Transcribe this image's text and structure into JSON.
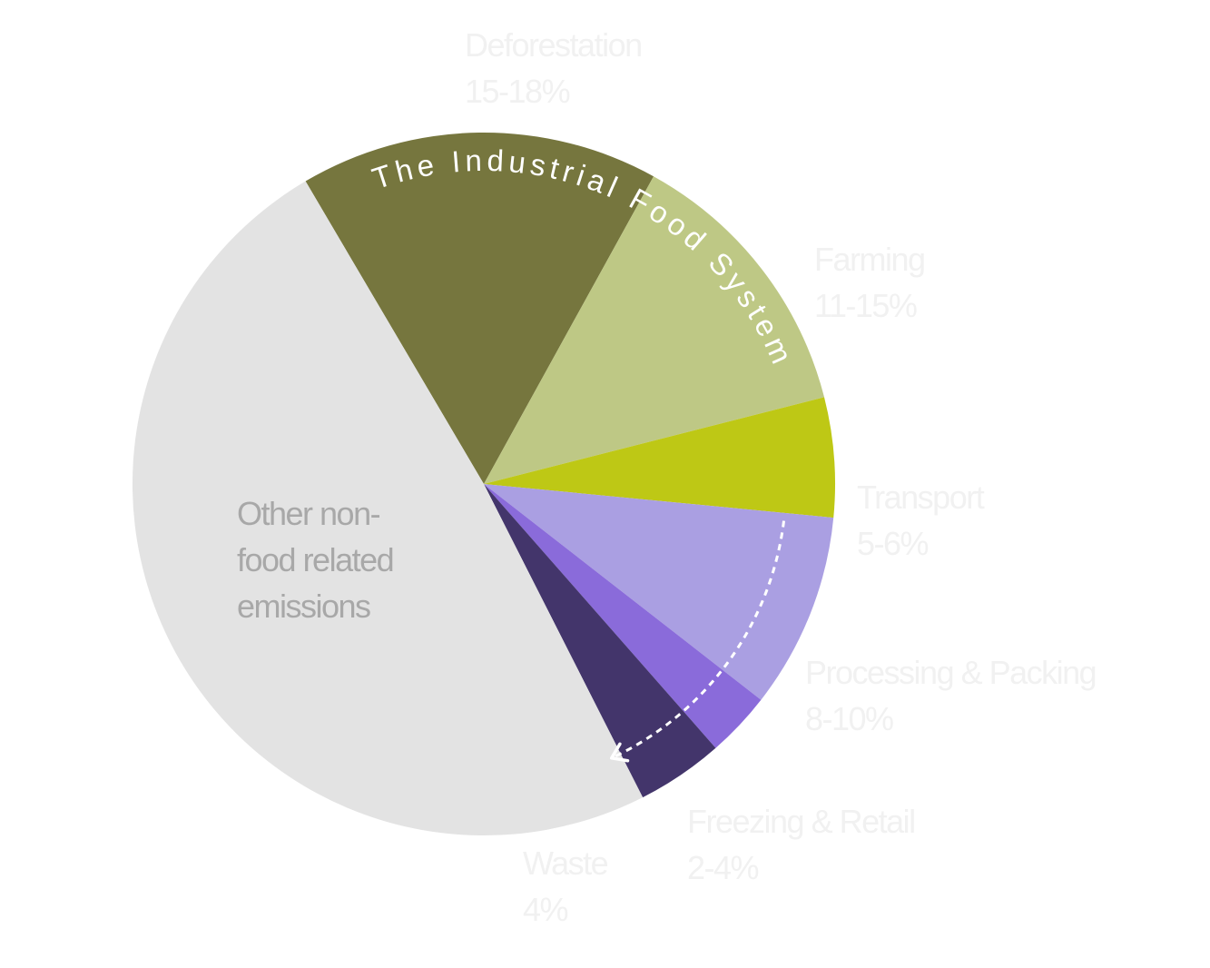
{
  "chart_data": {
    "type": "pie",
    "title": "",
    "annotation": "The Industrial Food System",
    "slices": [
      {
        "label": "Deforestation",
        "range": "15-18%",
        "value": 16.5,
        "color": "#76763e"
      },
      {
        "label": "Farming",
        "range": "11-15%",
        "value": 13.0,
        "color": "#bec885"
      },
      {
        "label": "Transport",
        "range": "5-6%",
        "value": 5.5,
        "color": "#bec815"
      },
      {
        "label": "Processing & Packing",
        "range": "8-10%",
        "value": 9.0,
        "color": "#aa9fe2"
      },
      {
        "label": "Freezing & Retail",
        "range": "2-4%",
        "value": 3.0,
        "color": "#8a6bda"
      },
      {
        "label": "Waste",
        "range": "4%",
        "value": 4.0,
        "color": "#43356b"
      },
      {
        "label_lines": [
          "Other non-",
          "food related",
          "emissions"
        ],
        "value": 49.0,
        "color": "#e3e3e3"
      }
    ]
  }
}
